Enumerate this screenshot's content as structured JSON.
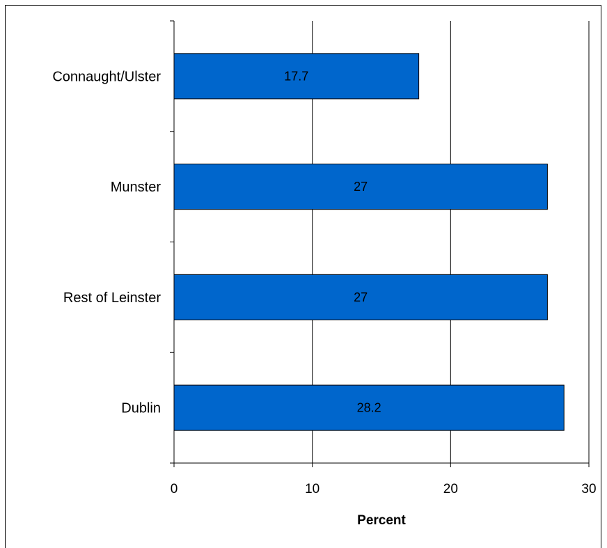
{
  "chart_data": {
    "type": "bar",
    "orientation": "horizontal",
    "categories": [
      "Connaught/Ulster",
      "Munster",
      "Rest of Leinster",
      "Dublin"
    ],
    "values": [
      17.7,
      27,
      27,
      28.2
    ],
    "data_labels": [
      "17.7",
      "27",
      "27",
      "28.2"
    ],
    "title": "",
    "xlabel": "Percent",
    "ylabel": "",
    "xlim": [
      0,
      30
    ],
    "xticks": [
      0,
      10,
      20,
      30
    ],
    "xtick_labels": [
      "0",
      "10",
      "20",
      "30"
    ],
    "grid": "vertical",
    "legend": "none",
    "colors": {
      "bar": "#0066cc",
      "bar_border": "#000000",
      "grid": "#000000"
    }
  }
}
